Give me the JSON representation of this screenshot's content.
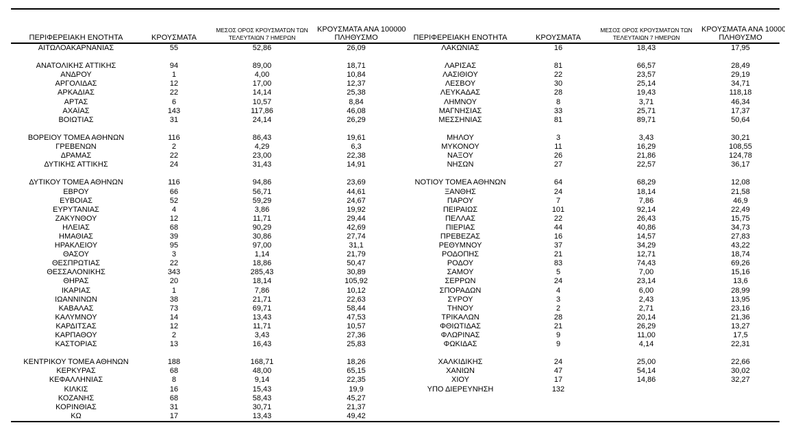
{
  "page": {
    "background_color": "#ffffff",
    "text_color": "#000000"
  },
  "table": {
    "headers": {
      "region": "ΠΕΡΙΦΕΡΕΙΑΚΗ ΕΝΟΤΗΤΑ",
      "cases": "ΚΡΟΥΣΜΑΤΑ",
      "avg7_line1": "ΜΕΣΟΣ ΟΡΟΣ ΚΡΟΥΣΜΑΤΩΝ ΤΩΝ",
      "avg7_line2": "ΤΕΛΕΥΤΑΙΩΝ 7 ΗΜΕΡΩΝ",
      "per100k_line1": "ΚΡΟΥΣΜΑΤΑ ΑΝΑ 100000",
      "per100k_line2": "ΠΛΗΘΥΣΜΟ"
    },
    "left_rows": [
      [
        "ΑΙΤΩΛΟΑΚΑΡΝΑΝΙΑΣ",
        "55",
        "52,86",
        "26,09"
      ],
      [
        "",
        "",
        "",
        ""
      ],
      [
        "ΑΝΑΤΟΛΙΚΗΣ ΑΤΤΙΚΗΣ",
        "94",
        "89,00",
        "18,71"
      ],
      [
        "ΑΝΔΡΟΥ",
        "1",
        "4,00",
        "10,84"
      ],
      [
        "ΑΡΓΟΛΙΔΑΣ",
        "12",
        "17,00",
        "12,37"
      ],
      [
        "ΑΡΚΑΔΙΑΣ",
        "22",
        "14,14",
        "25,38"
      ],
      [
        "ΑΡΤΑΣ",
        "6",
        "10,57",
        "8,84"
      ],
      [
        "ΑΧΑΪΑΣ",
        "143",
        "117,86",
        "46,08"
      ],
      [
        "ΒΟΙΩΤΙΑΣ",
        "31",
        "24,14",
        "26,29"
      ],
      [
        "",
        "",
        "",
        ""
      ],
      [
        "ΒΟΡΕΙΟΥ ΤΟΜΕΑ ΑΘΗΝΩΝ",
        "116",
        "86,43",
        "19,61"
      ],
      [
        "ΓΡΕΒΕΝΩΝ",
        "2",
        "4,29",
        "6,3"
      ],
      [
        "ΔΡΑΜΑΣ",
        "22",
        "23,00",
        "22,38"
      ],
      [
        "ΔΥΤΙΚΗΣ ΑΤΤΙΚΗΣ",
        "24",
        "31,43",
        "14,91"
      ],
      [
        "",
        "",
        "",
        ""
      ],
      [
        "ΔΥΤΙΚΟΥ ΤΟΜΕΑ ΑΘΗΝΩΝ",
        "116",
        "94,86",
        "23,69"
      ],
      [
        "ΕΒΡΟΥ",
        "66",
        "56,71",
        "44,61"
      ],
      [
        "ΕΥΒΟΙΑΣ",
        "52",
        "59,29",
        "24,67"
      ],
      [
        "ΕΥΡΥΤΑΝΙΑΣ",
        "4",
        "3,86",
        "19,92"
      ],
      [
        "ΖΑΚΥΝΘΟΥ",
        "12",
        "11,71",
        "29,44"
      ],
      [
        "ΗΛΕΙΑΣ",
        "68",
        "90,29",
        "42,69"
      ],
      [
        "ΗΜΑΘΙΑΣ",
        "39",
        "30,86",
        "27,74"
      ],
      [
        "ΗΡΑΚΛΕΙΟΥ",
        "95",
        "97,00",
        "31,1"
      ],
      [
        "ΘΑΣΟΥ",
        "3",
        "1,14",
        "21,79"
      ],
      [
        "ΘΕΣΠΡΩΤΙΑΣ",
        "22",
        "18,86",
        "50,47"
      ],
      [
        "ΘΕΣΣΑΛΟΝΙΚΗΣ",
        "343",
        "285,43",
        "30,89"
      ],
      [
        "ΘΗΡΑΣ",
        "20",
        "18,14",
        "105,92"
      ],
      [
        "ΙΚΑΡΙΑΣ",
        "1",
        "7,86",
        "10,12"
      ],
      [
        "ΙΩΑΝΝΙΝΩΝ",
        "38",
        "21,71",
        "22,63"
      ],
      [
        "ΚΑΒΑΛΑΣ",
        "73",
        "69,71",
        "58,44"
      ],
      [
        "ΚΑΛΥΜΝΟΥ",
        "14",
        "13,43",
        "47,53"
      ],
      [
        "ΚΑΡΔΙΤΣΑΣ",
        "12",
        "11,71",
        "10,57"
      ],
      [
        "ΚΑΡΠΑΘΟΥ",
        "2",
        "3,43",
        "27,36"
      ],
      [
        "ΚΑΣΤΟΡΙΑΣ",
        "13",
        "16,43",
        "25,83"
      ],
      [
        "",
        "",
        "",
        ""
      ],
      [
        "ΚΕΝΤΡΙΚΟΥ ΤΟΜΕΑ ΑΘΗΝΩΝ",
        "188",
        "168,71",
        "18,26"
      ],
      [
        "ΚΕΡΚΥΡΑΣ",
        "68",
        "48,00",
        "65,15"
      ],
      [
        "ΚΕΦΑΛΛΗΝΙΑΣ",
        "8",
        "9,14",
        "22,35"
      ],
      [
        "ΚΙΛΚΙΣ",
        "16",
        "15,43",
        "19,9"
      ],
      [
        "ΚΟΖΑΝΗΣ",
        "68",
        "58,43",
        "45,27"
      ],
      [
        "ΚΟΡΙΝΘΙΑΣ",
        "31",
        "30,71",
        "21,37"
      ],
      [
        "ΚΩ",
        "17",
        "13,43",
        "49,42"
      ]
    ],
    "right_rows": [
      [
        "ΛΑΚΩΝΙΑΣ",
        "16",
        "18,43",
        "17,95"
      ],
      [
        "",
        "",
        "",
        ""
      ],
      [
        "ΛΑΡΙΣΑΣ",
        "81",
        "66,57",
        "28,49"
      ],
      [
        "ΛΑΣΙΘΙΟΥ",
        "22",
        "23,57",
        "29,19"
      ],
      [
        "ΛΕΣΒΟΥ",
        "30",
        "25,14",
        "34,71"
      ],
      [
        "ΛΕΥΚΑΔΑΣ",
        "28",
        "19,43",
        "118,18"
      ],
      [
        "ΛΗΜΝΟΥ",
        "8",
        "3,71",
        "46,34"
      ],
      [
        "ΜΑΓΝΗΣΙΑΣ",
        "33",
        "25,71",
        "17,37"
      ],
      [
        "ΜΕΣΣΗΝΙΑΣ",
        "81",
        "89,71",
        "50,64"
      ],
      [
        "",
        "",
        "",
        ""
      ],
      [
        "ΜΗΛΟΥ",
        "3",
        "3,43",
        "30,21"
      ],
      [
        "ΜΥΚΟΝΟΥ",
        "11",
        "16,29",
        "108,55"
      ],
      [
        "ΝΑΞΟΥ",
        "26",
        "21,86",
        "124,78"
      ],
      [
        "ΝΗΣΩΝ",
        "27",
        "22,57",
        "36,17"
      ],
      [
        "",
        "",
        "",
        ""
      ],
      [
        "ΝΟΤΙΟΥ ΤΟΜΕΑ ΑΘΗΝΩΝ",
        "64",
        "68,29",
        "12,08"
      ],
      [
        "ΞΑΝΘΗΣ",
        "24",
        "18,14",
        "21,58"
      ],
      [
        "ΠΑΡΟΥ",
        "7",
        "7,86",
        "46,9"
      ],
      [
        "ΠΕΙΡΑΙΩΣ",
        "101",
        "92,14",
        "22,49"
      ],
      [
        "ΠΕΛΛΑΣ",
        "22",
        "26,43",
        "15,75"
      ],
      [
        "ΠΙΕΡΙΑΣ",
        "44",
        "40,86",
        "34,73"
      ],
      [
        "ΠΡΕΒΕΖΑΣ",
        "16",
        "14,57",
        "27,83"
      ],
      [
        "ΡΕΘΥΜΝΟΥ",
        "37",
        "34,29",
        "43,22"
      ],
      [
        "ΡΟΔΟΠΗΣ",
        "21",
        "12,71",
        "18,74"
      ],
      [
        "ΡΟΔΟΥ",
        "83",
        "74,43",
        "69,26"
      ],
      [
        "ΣΑΜΟΥ",
        "5",
        "7,00",
        "15,16"
      ],
      [
        "ΣΕΡΡΩΝ",
        "24",
        "23,14",
        "13,6"
      ],
      [
        "ΣΠΟΡΑΔΩΝ",
        "4",
        "6,00",
        "28,99"
      ],
      [
        "ΣΥΡΟΥ",
        "3",
        "2,43",
        "13,95"
      ],
      [
        "ΤΗΝΟΥ",
        "2",
        "2,71",
        "23,16"
      ],
      [
        "ΤΡΙΚΑΛΩΝ",
        "28",
        "20,14",
        "21,36"
      ],
      [
        "ΦΘΙΩΤΙΔΑΣ",
        "21",
        "26,29",
        "13,27"
      ],
      [
        "ΦΛΩΡΙΝΑΣ",
        "9",
        "11,00",
        "17,5"
      ],
      [
        "ΦΩΚΙΔΑΣ",
        "9",
        "4,14",
        "22,31"
      ],
      [
        "",
        "",
        "",
        ""
      ],
      [
        "ΧΑΛΚΙΔΙΚΗΣ",
        "24",
        "25,00",
        "22,66"
      ],
      [
        "ΧΑΝΙΩΝ",
        "47",
        "54,14",
        "30,02"
      ],
      [
        "ΧΙΟΥ",
        "17",
        "14,86",
        "32,27"
      ],
      [
        "ΥΠΟ ΔΙΕΡΕΥΝΗΣΗ",
        "132",
        "",
        ""
      ],
      [
        "",
        "",
        "",
        ""
      ],
      [
        "",
        "",
        "",
        ""
      ],
      [
        "",
        "",
        "",
        ""
      ]
    ]
  }
}
